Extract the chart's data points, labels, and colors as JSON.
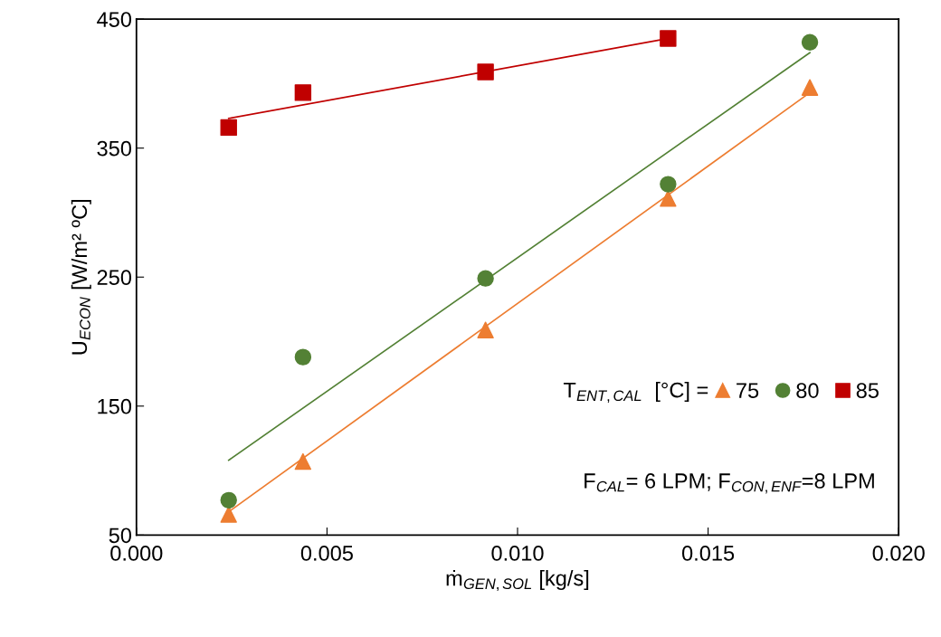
{
  "chart_data": {
    "type": "scatter",
    "xlabel": "ṁ$_{GEN,SOL}$ [kg/s]",
    "ylabel": "U$_{ECON}$ [W/m² ºC]",
    "legend_title": "T$_{ENT,CAL}$  [°C] =",
    "annotations": [
      "F$_{CAL}$= 6 LPM; F$_{CON,ENF}$=8 LPM"
    ],
    "xlim": [
      0,
      0.02
    ],
    "xticks": [
      {
        "value": 0,
        "label": "0.000"
      },
      {
        "value": 0.005,
        "label": "0.005"
      },
      {
        "value": 0.01,
        "label": "0.010"
      },
      {
        "value": 0.015,
        "label": "0.015"
      },
      {
        "value": 0.02,
        "label": "0.020"
      }
    ],
    "ylim": [
      50,
      450
    ],
    "yticks": [
      50,
      150,
      250,
      350,
      450
    ],
    "grid": false,
    "legend": "bottom right",
    "series": [
      {
        "name": "75",
        "color": "#ed7d31",
        "marker": "triangle",
        "x": [
          0.00242,
          0.00437,
          0.00916,
          0.01395,
          0.01767
        ],
        "values": [
          66,
          107,
          209,
          311,
          397
        ]
      },
      {
        "name": "80",
        "color": "#538135",
        "marker": "circle",
        "x": [
          0.00242,
          0.00437,
          0.00916,
          0.01395,
          0.01767
        ],
        "values": [
          77,
          188,
          249,
          322,
          432
        ]
      },
      {
        "name": "85",
        "color": "#c00000",
        "marker": "square",
        "x": [
          0.00242,
          0.00437,
          0.00916,
          0.01395
        ],
        "values": [
          366,
          393,
          409,
          435
        ]
      },
      {
        "type": "line",
        "color": "#ed7d31",
        "marker": "none",
        "x": [
          0.00242,
          0.01767
        ],
        "values": [
          68,
          393
        ]
      },
      {
        "type": "line",
        "color": "#538135",
        "marker": "none",
        "x": [
          0.00242,
          0.01767
        ],
        "values": [
          108,
          424
        ]
      },
      {
        "type": "line",
        "color": "#c00000",
        "marker": "none",
        "x": [
          0.00242,
          0.01395
        ],
        "values": [
          373,
          435
        ]
      }
    ]
  }
}
